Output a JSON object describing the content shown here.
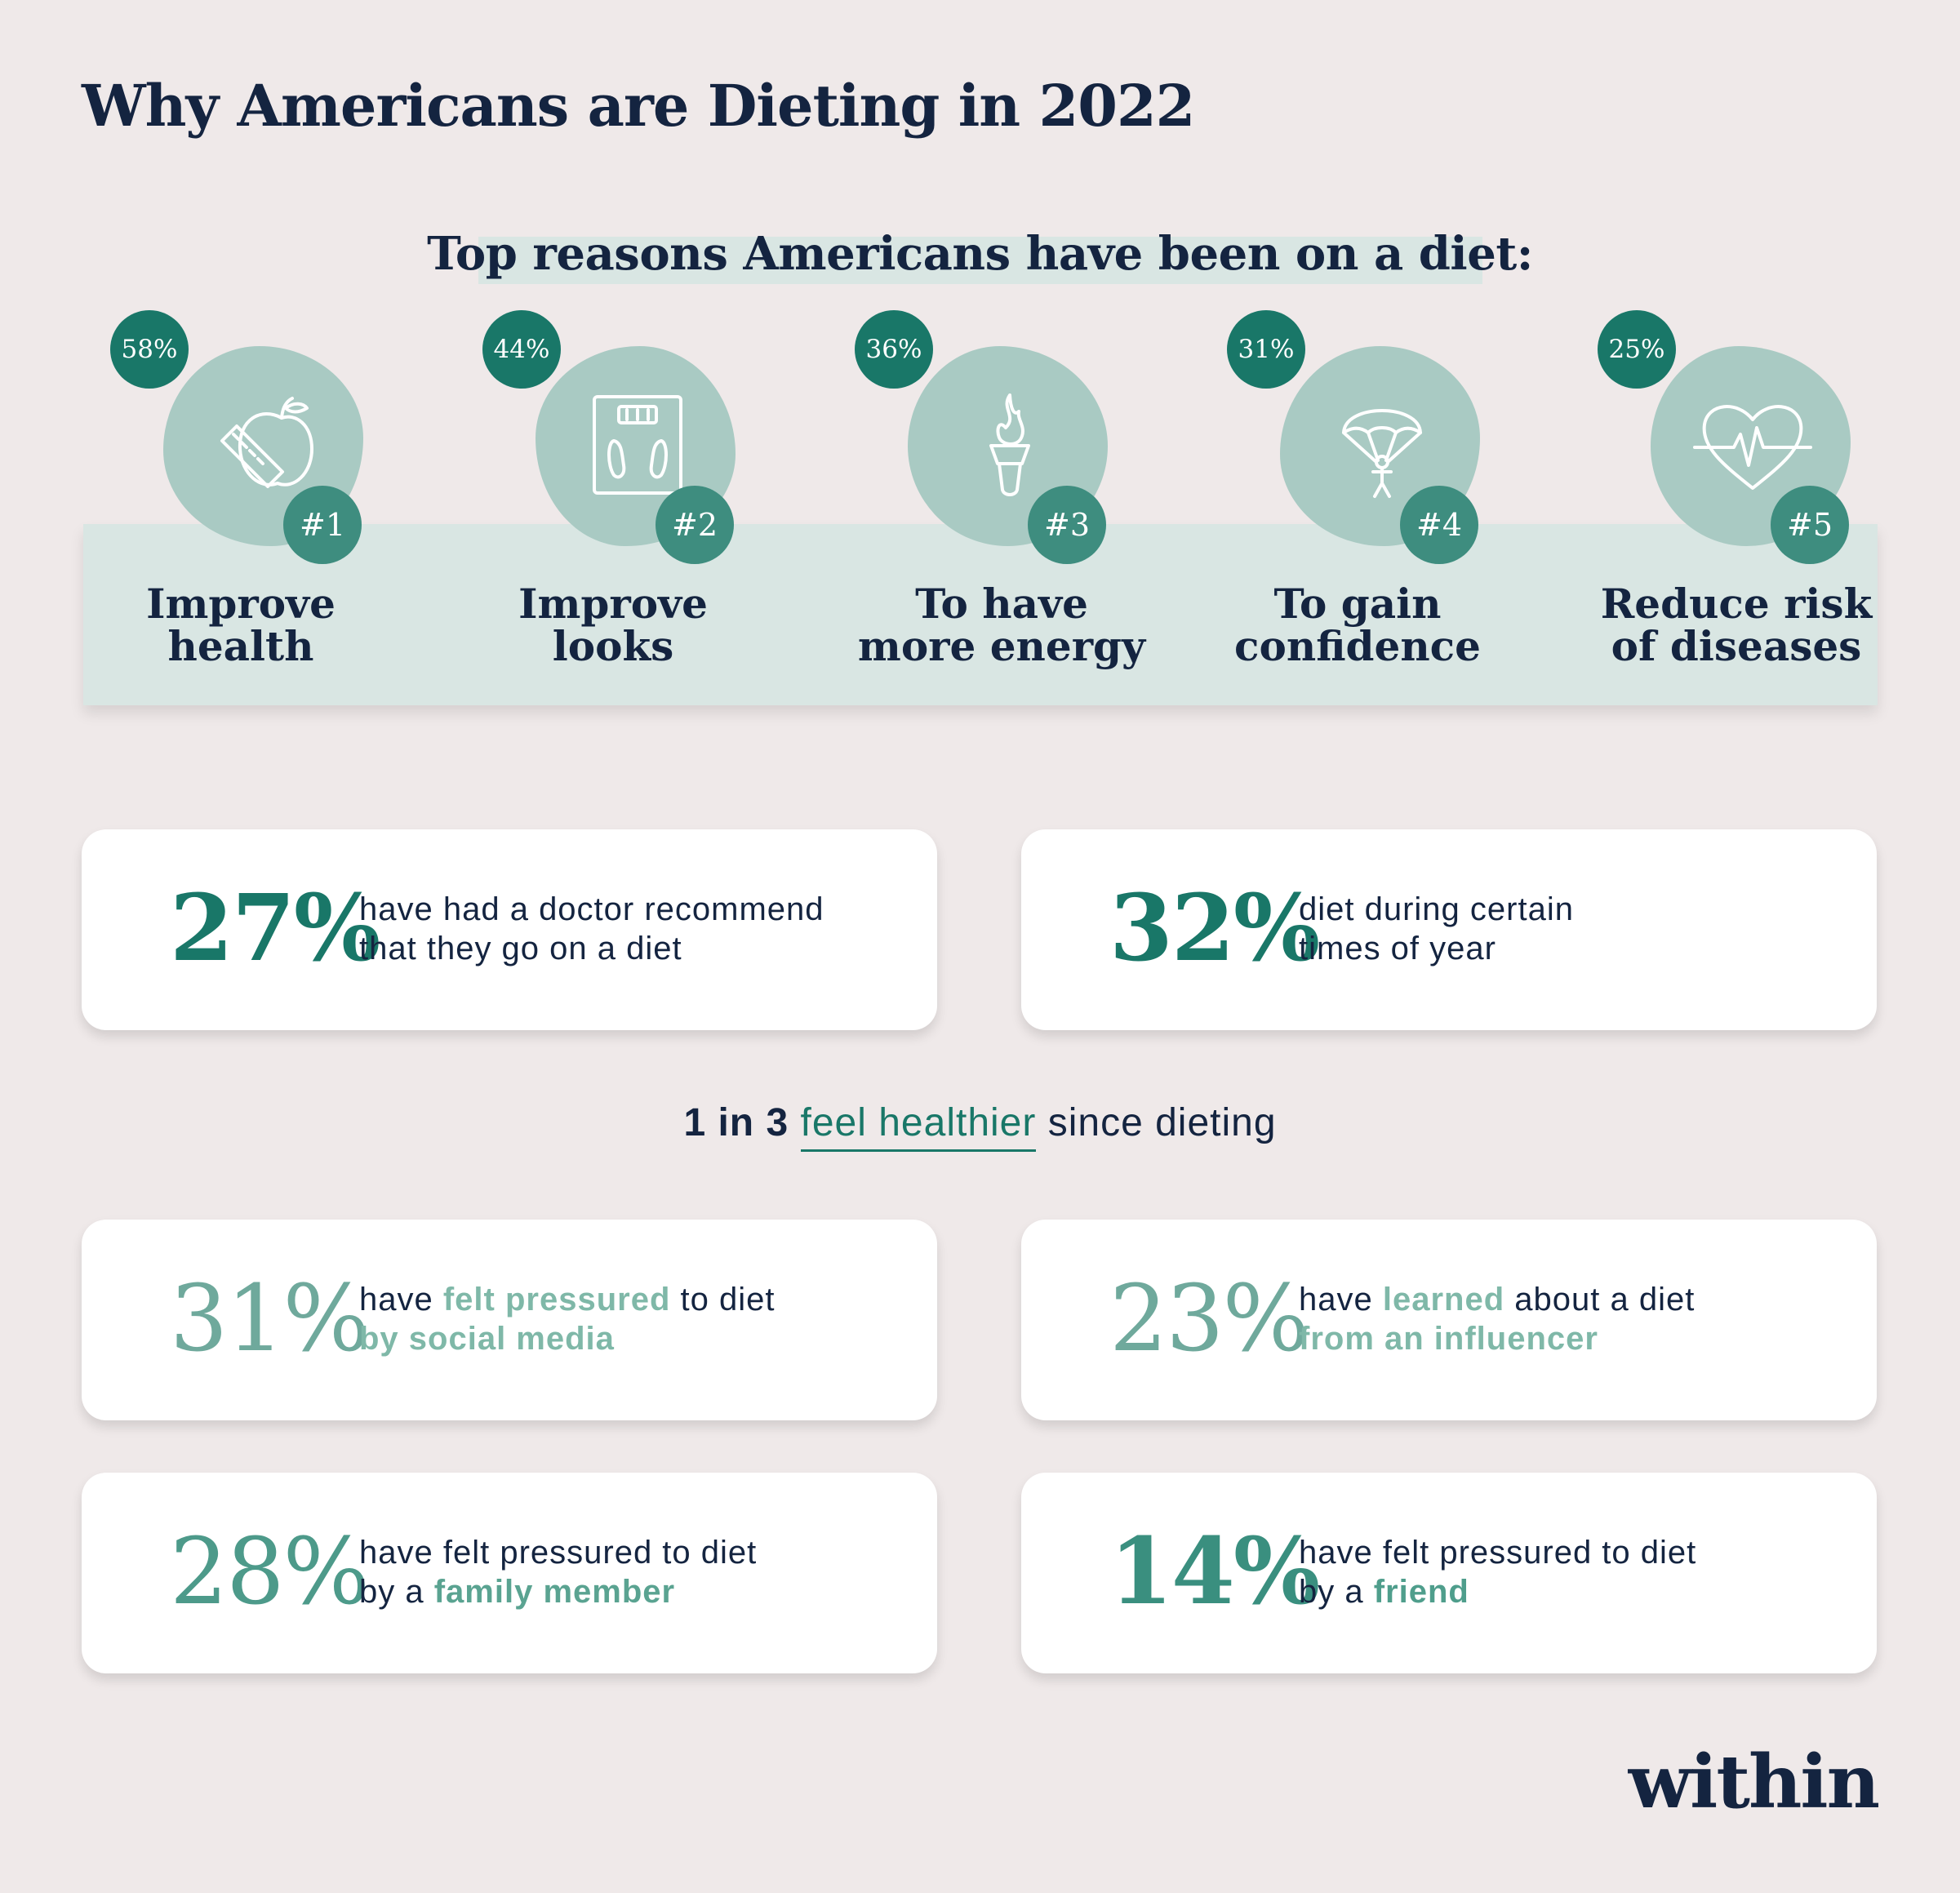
{
  "title": "Why Americans are Dieting in 2022",
  "subtitle": "Top reasons Americans have been on a diet:",
  "reasons": [
    {
      "pct": "58%",
      "rank": "#1",
      "line1": "Improve",
      "line2": "health",
      "icon": "apple-measuring-tape-icon"
    },
    {
      "pct": "44%",
      "rank": "#2",
      "line1": "Improve",
      "line2": "looks",
      "icon": "scale-icon"
    },
    {
      "pct": "36%",
      "rank": "#3",
      "line1": "To have",
      "line2": "more energy",
      "icon": "torch-icon"
    },
    {
      "pct": "31%",
      "rank": "#4",
      "line1": "To gain",
      "line2": "confidence",
      "icon": "parachute-icon"
    },
    {
      "pct": "25%",
      "rank": "#5",
      "line1": "Reduce risk",
      "line2": "of diseases",
      "icon": "heartbeat-icon"
    }
  ],
  "stats_top": [
    {
      "value": "27%",
      "line1": "have had a doctor recommend",
      "line2": "that they go on a diet"
    },
    {
      "value": "32%",
      "line1": "diet during certain",
      "line2": "times of year"
    }
  ],
  "insight": {
    "lead": "1 in 3",
    "highlight": "feel healthier",
    "tail": "since dieting"
  },
  "stats_bottom": [
    {
      "value": "31%",
      "a": "have ",
      "b": "felt pressured",
      "c": " to diet",
      "line2": "by social media"
    },
    {
      "value": "23%",
      "a": "have ",
      "b": "learned",
      "c": " about a diet",
      "line2": "from an influencer"
    },
    {
      "value": "28%",
      "line1": "have felt pressured to diet",
      "line2_a": "by a ",
      "line2_b": "family member"
    },
    {
      "value": "14%",
      "line1": "have felt pressured to diet",
      "line2_a": "by a ",
      "line2_b": "friend"
    }
  ],
  "logo": "within",
  "colors": {
    "background": "#efe9e9",
    "navy": "#142440",
    "teal_dark": "#197768",
    "teal_mid": "#3e8d7f",
    "teal_light": "#a9cac3",
    "band": "#d9e6e3",
    "highlight": "#7fb8a8"
  }
}
